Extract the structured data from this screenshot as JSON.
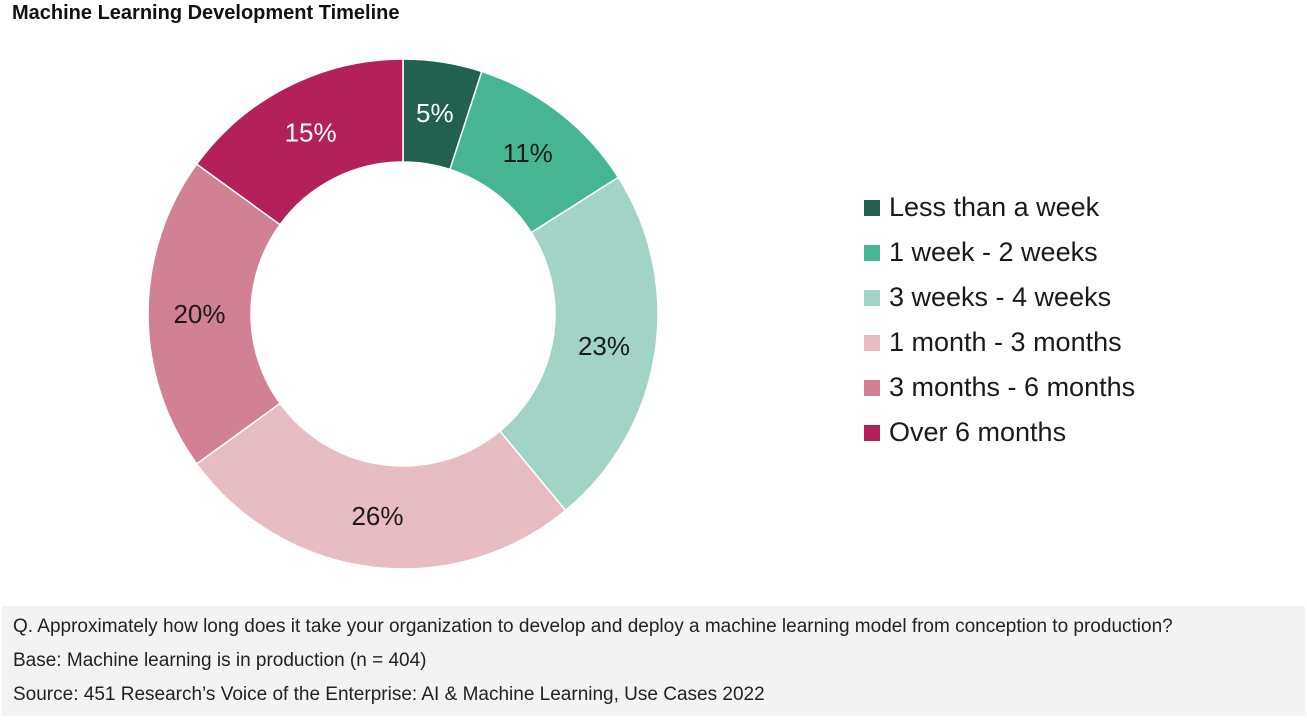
{
  "chart_data": {
    "type": "pie",
    "title": "Machine Learning Development Timeline",
    "categories": [
      "Less than a week",
      "1 week - 2 weeks",
      "3 weeks - 4 weeks",
      "1 month - 3 months",
      "3 months - 6 months",
      "Over 6 months"
    ],
    "values": [
      5,
      11,
      23,
      26,
      20,
      15
    ],
    "data_labels": [
      "5%",
      "11%",
      "23%",
      "26%",
      "20%",
      "15%"
    ],
    "colors": [
      "#22614f",
      "#46b692",
      "#a2d4c6",
      "#e8bcc3",
      "#d28194",
      "#b4215a"
    ],
    "label_colors": [
      "#ffffff",
      "#1a1a1a",
      "#1a1a1a",
      "#1a1a1a",
      "#1a1a1a",
      "#ffffff"
    ],
    "donut": true,
    "legend_position": "right"
  },
  "footer": {
    "question": "Q. Approximately how long does it take your organization to develop and deploy a machine learning model from conception to production?",
    "base": "Base: Machine learning is in production (n = 404)",
    "source": "Source: 451 Research’s Voice of the Enterprise: AI & Machine Learning, Use Cases 2022"
  }
}
